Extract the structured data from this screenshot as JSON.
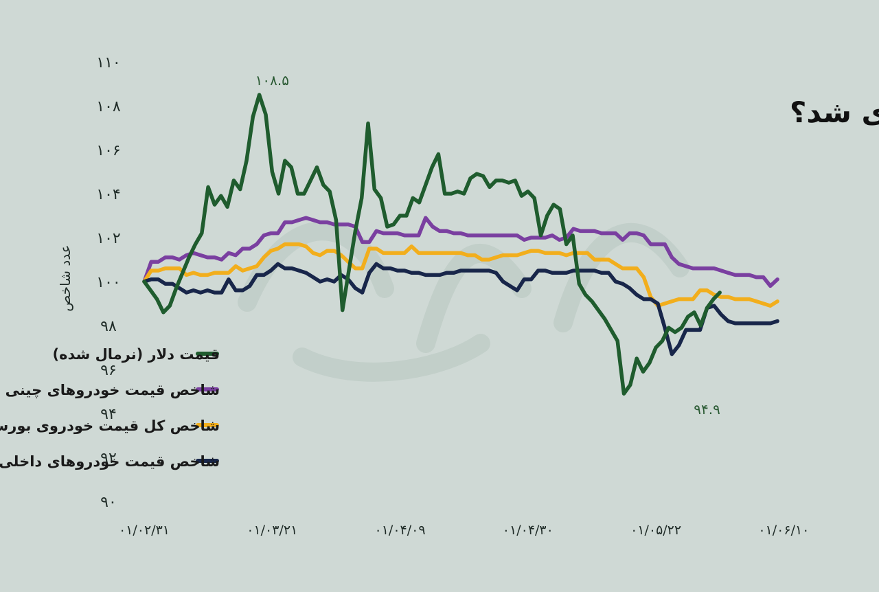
{
  "chart_data": {
    "type": "line",
    "title": "خودرو هم صعودی شد؟",
    "xlabel": "",
    "ylabel": "عدد شاخص",
    "ylim": [
      90,
      110
    ],
    "y_ticks": [
      "۹۰",
      "۹۲",
      "۹۴",
      "۹۶",
      "۹۸",
      "۱۰۰",
      "۱۰۲",
      "۱۰۴",
      "۱۰۶",
      "۱۰۸",
      "۱۱۰"
    ],
    "y_tick_values": [
      90,
      92,
      94,
      96,
      98,
      100,
      102,
      104,
      106,
      108,
      110
    ],
    "x_ticks": [
      "۰۱/۰۲/۳۱",
      "۰۱/۰۳/۲۱",
      "۰۱/۰۴/۰۹",
      "۰۱/۰۴/۳۰",
      "۰۱/۰۵/۲۲",
      "۰۱/۰۶/۱۰"
    ],
    "x_tick_positions": [
      0,
      20,
      40,
      60,
      80,
      100
    ],
    "x_range": [
      0,
      102
    ],
    "grid": false,
    "legend_placement": "bottom-left",
    "annotations": [
      {
        "text": "۱۰۸.۵",
        "x": 20,
        "y": 108.5,
        "series": 0,
        "position": "above"
      },
      {
        "text": "۹۴.۹",
        "x": 88,
        "y": 94.9,
        "series": 0,
        "position": "below"
      }
    ],
    "series": [
      {
        "name": "قیمت دلار (نرمال شده)",
        "color": "#1f5c2e",
        "y": [
          100,
          99.6,
          99.2,
          98.6,
          98.9,
          99.7,
          100.4,
          101.1,
          101.7,
          102.2,
          104.3,
          103.5,
          103.9,
          103.4,
          104.6,
          104.2,
          105.5,
          107.5,
          108.5,
          107.6,
          105,
          104,
          105.5,
          105.2,
          104,
          104,
          104.6,
          105.2,
          104.4,
          104.1,
          102.8,
          98.7,
          100.5,
          102.3,
          103.8,
          107.2,
          104.2,
          103.8,
          102.5,
          102.6,
          103,
          103,
          103.8,
          103.6,
          104.4,
          105.2,
          105.8,
          104,
          104,
          104.1,
          104,
          104.7,
          104.9,
          104.8,
          104.3,
          104.6,
          104.6,
          104.5,
          104.6,
          103.9,
          104.1,
          103.8,
          102.1,
          103,
          103.5,
          103.3,
          101.7,
          102.1,
          99.9,
          99.4,
          99.1,
          98.7,
          98.3,
          97.8,
          97.3,
          94.9,
          95.3,
          96.5,
          95.9,
          96.3,
          97,
          97.3,
          97.9,
          97.7,
          97.9,
          98.4,
          98.6,
          98,
          98.8,
          99.2,
          99.5
        ],
        "x_start": 0,
        "x_step": 1
      },
      {
        "name": "شاخص قیمت خودروهای چینی",
        "color": "#7a3fa0",
        "y": [
          100,
          100.9,
          100.9,
          101.1,
          101.1,
          101,
          101.2,
          101.3,
          101.2,
          101.1,
          101.1,
          101,
          101.3,
          101.2,
          101.5,
          101.5,
          101.7,
          102.1,
          102.2,
          102.2,
          102.7,
          102.7,
          102.8,
          102.9,
          102.8,
          102.7,
          102.7,
          102.6,
          102.6,
          102.6,
          102.5,
          101.8,
          101.8,
          102.3,
          102.2,
          102.2,
          102.2,
          102.1,
          102.1,
          102.1,
          102.9,
          102.5,
          102.3,
          102.3,
          102.2,
          102.2,
          102.1,
          102.1,
          102.1,
          102.1,
          102.1,
          102.1,
          102.1,
          102.1,
          101.9,
          102,
          102,
          102,
          102.1,
          101.9,
          102,
          102.4,
          102.3,
          102.3,
          102.3,
          102.2,
          102.2,
          102.2,
          101.9,
          102.2,
          102.2,
          102.1,
          101.7,
          101.7,
          101.7,
          101.1,
          100.8,
          100.7,
          100.6,
          100.6,
          100.6,
          100.6,
          100.5,
          100.4,
          100.3,
          100.3,
          100.3,
          100.2,
          100.2,
          99.8,
          100.1
        ],
        "x_start": 0,
        "x_step": 1.1
      },
      {
        "name": "شاخص کل قیمت خودروی بورسان",
        "color": "#f2ae1c",
        "y": [
          100,
          100.5,
          100.5,
          100.6,
          100.6,
          100.6,
          100.3,
          100.4,
          100.3,
          100.3,
          100.4,
          100.4,
          100.4,
          100.7,
          100.5,
          100.6,
          100.7,
          101.1,
          101.4,
          101.5,
          101.7,
          101.7,
          101.7,
          101.6,
          101.3,
          101.2,
          101.4,
          101.4,
          101.2,
          100.9,
          100.6,
          100.6,
          101.5,
          101.5,
          101.3,
          101.3,
          101.3,
          101.3,
          101.6,
          101.3,
          101.3,
          101.3,
          101.3,
          101.3,
          101.3,
          101.3,
          101.2,
          101.2,
          101,
          101,
          101.1,
          101.2,
          101.2,
          101.2,
          101.3,
          101.4,
          101.4,
          101.3,
          101.3,
          101.3,
          101.2,
          101.3,
          101.3,
          101.3,
          101,
          101,
          101,
          100.8,
          100.6,
          100.6,
          100.6,
          100.2,
          99.3,
          98.9,
          99,
          99.1,
          99.2,
          99.2,
          99.2,
          99.6,
          99.6,
          99.4,
          99.3,
          99.3,
          99.2,
          99.2,
          99.2,
          99.1,
          99,
          98.9,
          99.1
        ],
        "x_start": 0,
        "x_step": 1.1
      },
      {
        "name": "شاخص قیمت خودروهای داخلی",
        "color": "#18264a",
        "y": [
          100,
          100.1,
          100.1,
          99.9,
          99.9,
          99.7,
          99.5,
          99.6,
          99.5,
          99.6,
          99.5,
          99.5,
          100.1,
          99.6,
          99.6,
          99.8,
          100.3,
          100.3,
          100.5,
          100.8,
          100.6,
          100.6,
          100.5,
          100.4,
          100.2,
          100,
          100.1,
          100,
          100.3,
          100.1,
          99.7,
          99.5,
          100.4,
          100.8,
          100.6,
          100.6,
          100.5,
          100.5,
          100.4,
          100.4,
          100.3,
          100.3,
          100.3,
          100.4,
          100.4,
          100.5,
          100.5,
          100.5,
          100.5,
          100.5,
          100.4,
          100,
          99.8,
          99.6,
          100.1,
          100.1,
          100.5,
          100.5,
          100.4,
          100.4,
          100.4,
          100.5,
          100.5,
          100.5,
          100.5,
          100.4,
          100.4,
          100,
          99.9,
          99.7,
          99.4,
          99.2,
          99.2,
          99,
          97.9,
          96.7,
          97.1,
          97.8,
          97.8,
          97.8,
          98.8,
          98.9,
          98.5,
          98.2,
          98.1,
          98.1,
          98.1,
          98.1,
          98.1,
          98.1,
          98.2
        ],
        "x_start": 0,
        "x_step": 1.1
      }
    ]
  }
}
